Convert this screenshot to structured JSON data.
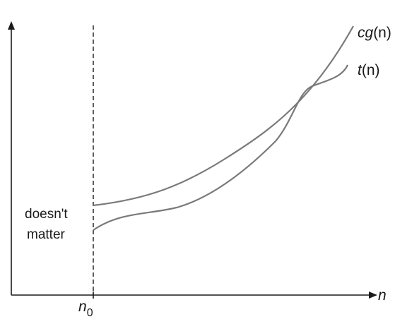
{
  "labels": {
    "upper_prefix": "cg",
    "upper_arg": "(n)",
    "lower_prefix": "t",
    "lower_arg": "(n)",
    "x_axis": "n",
    "threshold_base": "n",
    "threshold_sub": "0",
    "note_line1": "doesn't",
    "note_line2": "matter"
  },
  "colors": {
    "axis": "#1a1a1a",
    "curve": "#7a7a7a"
  }
}
